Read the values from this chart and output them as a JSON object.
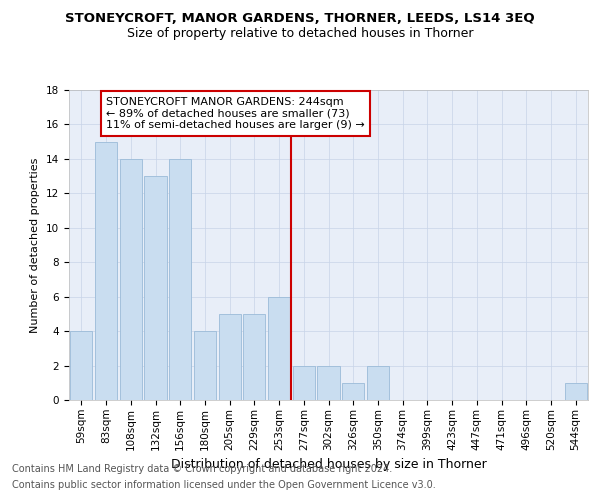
{
  "title": "STONEYCROFT, MANOR GARDENS, THORNER, LEEDS, LS14 3EQ",
  "subtitle": "Size of property relative to detached houses in Thorner",
  "xlabel": "Distribution of detached houses by size in Thorner",
  "ylabel": "Number of detached properties",
  "categories": [
    "59sqm",
    "83sqm",
    "108sqm",
    "132sqm",
    "156sqm",
    "180sqm",
    "205sqm",
    "229sqm",
    "253sqm",
    "277sqm",
    "302sqm",
    "326sqm",
    "350sqm",
    "374sqm",
    "399sqm",
    "423sqm",
    "447sqm",
    "471sqm",
    "496sqm",
    "520sqm",
    "544sqm"
  ],
  "values": [
    4,
    15,
    14,
    13,
    14,
    4,
    5,
    5,
    6,
    2,
    2,
    1,
    2,
    0,
    0,
    0,
    0,
    0,
    0,
    0,
    1
  ],
  "bar_color": "#c9ddf0",
  "bar_edgecolor": "#9bbbd8",
  "vline_color": "#cc0000",
  "vline_x": 8.5,
  "annotation_line0": "STONEYCROFT MANOR GARDENS: 244sqm",
  "annotation_line1": "← 89% of detached houses are smaller (73)",
  "annotation_line2": "11% of semi-detached houses are larger (9) →",
  "annotation_box_facecolor": "#ffffff",
  "annotation_box_edgecolor": "#cc0000",
  "ylim": [
    0,
    18
  ],
  "yticks": [
    0,
    2,
    4,
    6,
    8,
    10,
    12,
    14,
    16,
    18
  ],
  "grid_color": "#c8d4e8",
  "background_color": "#e8eef8",
  "footer_line1": "Contains HM Land Registry data © Crown copyright and database right 2024.",
  "footer_line2": "Contains public sector information licensed under the Open Government Licence v3.0.",
  "title_fontsize": 9.5,
  "subtitle_fontsize": 9,
  "xlabel_fontsize": 9,
  "ylabel_fontsize": 8,
  "tick_fontsize": 7.5,
  "annotation_fontsize": 8,
  "footer_fontsize": 7
}
